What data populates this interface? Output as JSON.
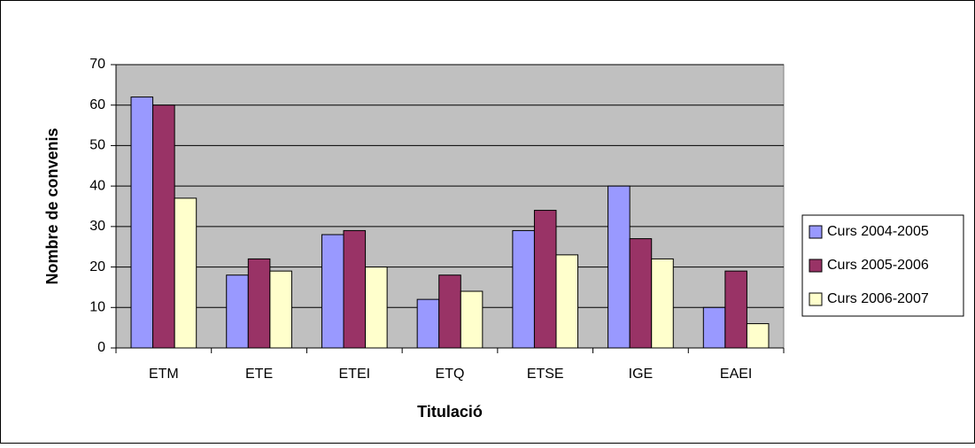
{
  "chart_data": {
    "type": "bar",
    "x_label": "Titulació",
    "y_label": "Nombre de convenis",
    "categories": [
      "ETM",
      "ETE",
      "ETEI",
      "ETQ",
      "ETSE",
      "IGE",
      "EAEI"
    ],
    "series": [
      {
        "name": "Curs 2004-2005",
        "color": "#9999ff",
        "values": [
          62,
          18,
          28,
          12,
          29,
          40,
          10
        ]
      },
      {
        "name": "Curs 2005-2006",
        "color": "#993366",
        "values": [
          60,
          22,
          29,
          18,
          34,
          27,
          19
        ]
      },
      {
        "name": "Curs 2006-2007",
        "color": "#ffffcc",
        "values": [
          37,
          19,
          20,
          14,
          23,
          22,
          6
        ]
      }
    ],
    "ylim": [
      0,
      70
    ],
    "yticks": [
      0,
      10,
      20,
      30,
      40,
      50,
      60,
      70
    ],
    "grid": true,
    "legend": "right"
  }
}
